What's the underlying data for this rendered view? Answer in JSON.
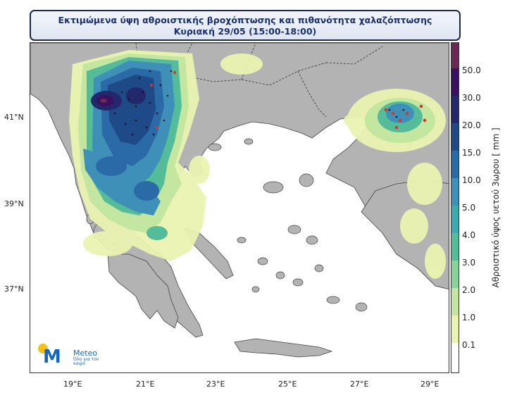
{
  "title": {
    "line1": "Εκτιμώμενα ύψη αθροιστικής βροχόπτωσης και πιθανότητα χαλαζόπτωσης",
    "line2": "Κυριακή 29/05 (15:00-18:00)"
  },
  "map": {
    "latitude_labels": [
      "41°N",
      "39°N",
      "37°N"
    ],
    "longitude_labels": [
      "19°E",
      "21°E",
      "23°E",
      "25°E",
      "27°E",
      "29°E"
    ],
    "colors": {
      "sea": "#ffffff",
      "land": "#b3b3b3",
      "coast": "#444444",
      "border": "#333333"
    }
  },
  "colorbar": {
    "label": "Αθροιστικό ύψος υετού 3ωρου [ mm ]",
    "ticks": [
      "50.0",
      "30.0",
      "20.0",
      "15.0",
      "10.0",
      "5.0",
      "4.0",
      "3.0",
      "2.0",
      "1.0",
      "0.1"
    ],
    "colors": [
      "#6b2a55",
      "#3a1060",
      "#23276b",
      "#1e4a88",
      "#2a6aa7",
      "#3f90b8",
      "#3daab0",
      "#54bc98",
      "#88d39a",
      "#c3e7a0",
      "#eaf4b0",
      "#ffffff"
    ]
  },
  "logo": {
    "name": "Meteo",
    "slogan": "Όλα για τον καιρό"
  }
}
